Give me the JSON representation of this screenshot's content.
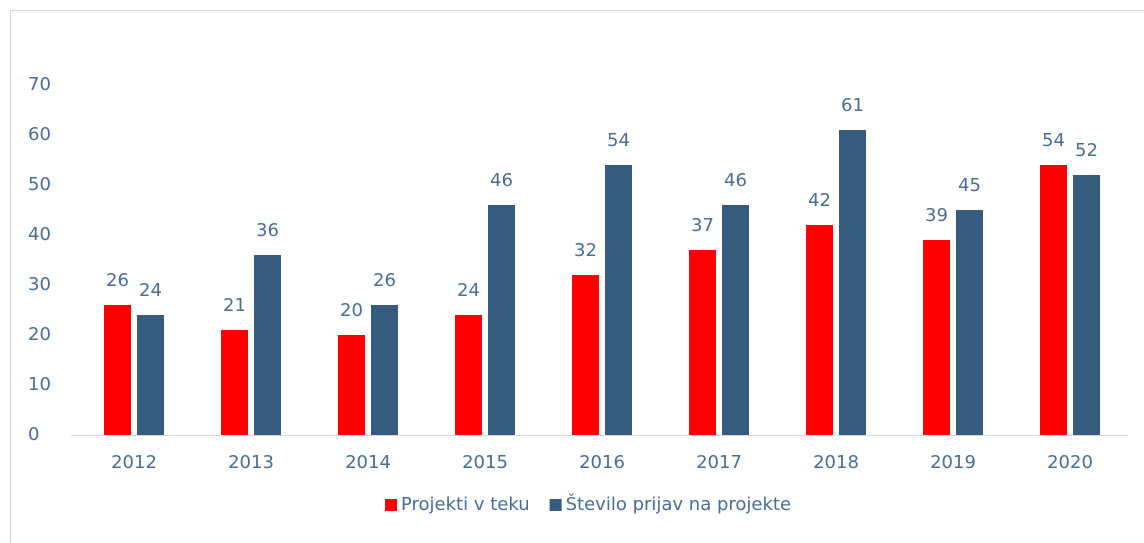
{
  "chart_data": {
    "type": "bar",
    "categories": [
      "2012",
      "2013",
      "2014",
      "2015",
      "2016",
      "2017",
      "2018",
      "2019",
      "2020"
    ],
    "series": [
      {
        "name": "Projekti v teku",
        "color": "#ff0000",
        "values": [
          26,
          21,
          20,
          24,
          32,
          37,
          42,
          39,
          54
        ]
      },
      {
        "name": "Število prijav na projekte",
        "color": "#365b7e",
        "values": [
          24,
          36,
          26,
          46,
          54,
          46,
          61,
          45,
          52
        ]
      }
    ],
    "ylim": [
      0,
      70
    ],
    "yticks": [
      0,
      10,
      20,
      30,
      40,
      50,
      60,
      70
    ],
    "grid": false,
    "legend": "bottom"
  }
}
